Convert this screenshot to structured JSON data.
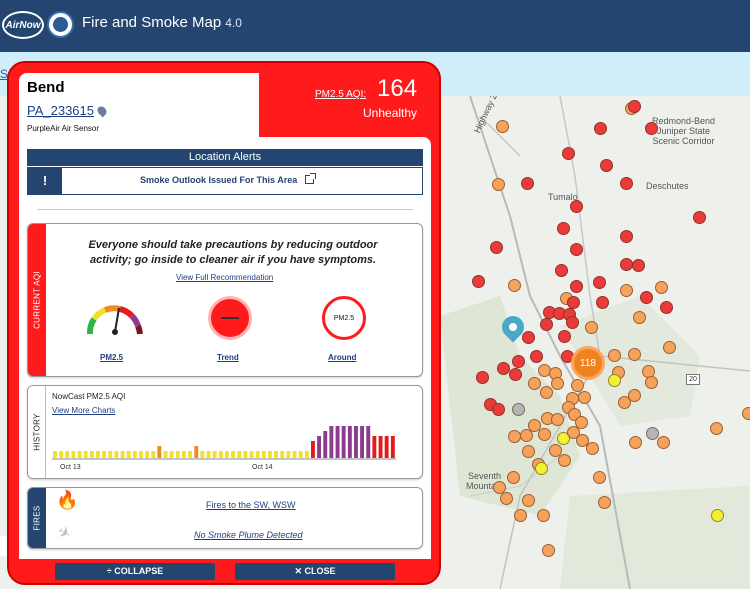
{
  "header": {
    "logo_text": "AirNow",
    "title": "Fire and Smoke Map",
    "version": "4.0"
  },
  "subbar": {
    "link_text": "S"
  },
  "map": {
    "labels": {
      "highway": "Highway 20",
      "redmond": "Redmond-Bend\nJuniper State\nScenic Corridor",
      "tumalo": "Tumalo",
      "deschutes": "Deschutes",
      "seventh_mountain": "Seventh\nMountain",
      "route_shield": "20"
    },
    "cluster_count": "118",
    "colors": {
      "good": "#f2f233",
      "moderate": "#f6a25a",
      "unhealthy": "#ea3b3b",
      "no_data": "#b5b5b5"
    }
  },
  "panel": {
    "location": {
      "name": "Bend",
      "sensor_id": "PA_233615",
      "sensor_type": "PurpleAir Air Sensor"
    },
    "aqi": {
      "label": "PM2.5 AQI:",
      "value": "164",
      "category": "Unhealthy",
      "color": "#ff1b1b"
    },
    "alerts": {
      "heading": "Location Alerts",
      "icon": "!",
      "text": "Smoke Outlook Issued For This Area"
    },
    "current": {
      "side_label": "CURRENT AQI",
      "advice": "Everyone should take precautions by reducing outdoor activity; go inside to cleaner air if you have symptoms.",
      "recommendation_link": "View Full Recommendation",
      "gauge_label": "PM2.5",
      "trend_label": "Trend",
      "around_label": "Around",
      "around_text": "PM2.5"
    },
    "history": {
      "side_label": "HISTORY",
      "title": "NowCast PM2.5 AQI",
      "link": "View More Charts",
      "ticks": [
        "Oct 13",
        "Oct 14"
      ],
      "bars": [
        "y",
        "y",
        "y",
        "y",
        "y",
        "y",
        "y",
        "y",
        "y",
        "y",
        "y",
        "y",
        "y",
        "y",
        "y",
        "y",
        "y",
        "o",
        "y",
        "y",
        "y",
        "y",
        "y",
        "o",
        "y",
        "y",
        "y",
        "y",
        "y",
        "y",
        "y",
        "y",
        "y",
        "y",
        "y",
        "y",
        "y",
        "y",
        "y",
        "y",
        "y",
        "y",
        "r",
        "p",
        "p",
        "p",
        "p",
        "p",
        "p",
        "p",
        "p",
        "p",
        "r",
        "r",
        "r",
        "r"
      ],
      "bar_levels": [
        1,
        1,
        1,
        1,
        1,
        1,
        1,
        1,
        1,
        1,
        1,
        1,
        1,
        1,
        1,
        1,
        1,
        2,
        1,
        1,
        1,
        1,
        1,
        2,
        1,
        1,
        1,
        1,
        1,
        1,
        1,
        1,
        1,
        1,
        1,
        1,
        1,
        1,
        1,
        1,
        1,
        1,
        3,
        4,
        5,
        6,
        6,
        6,
        6,
        6,
        6,
        6,
        4,
        4,
        4,
        4
      ]
    },
    "fires": {
      "side_label": "FIRES",
      "fires_link": "Fires to the SW, WSW",
      "smoke_link": "No Smoke Plume Detected"
    },
    "buttons": {
      "collapse": "COLLAPSE",
      "close": "CLOSE",
      "collapse_icon": "÷",
      "close_icon": "✕"
    }
  }
}
